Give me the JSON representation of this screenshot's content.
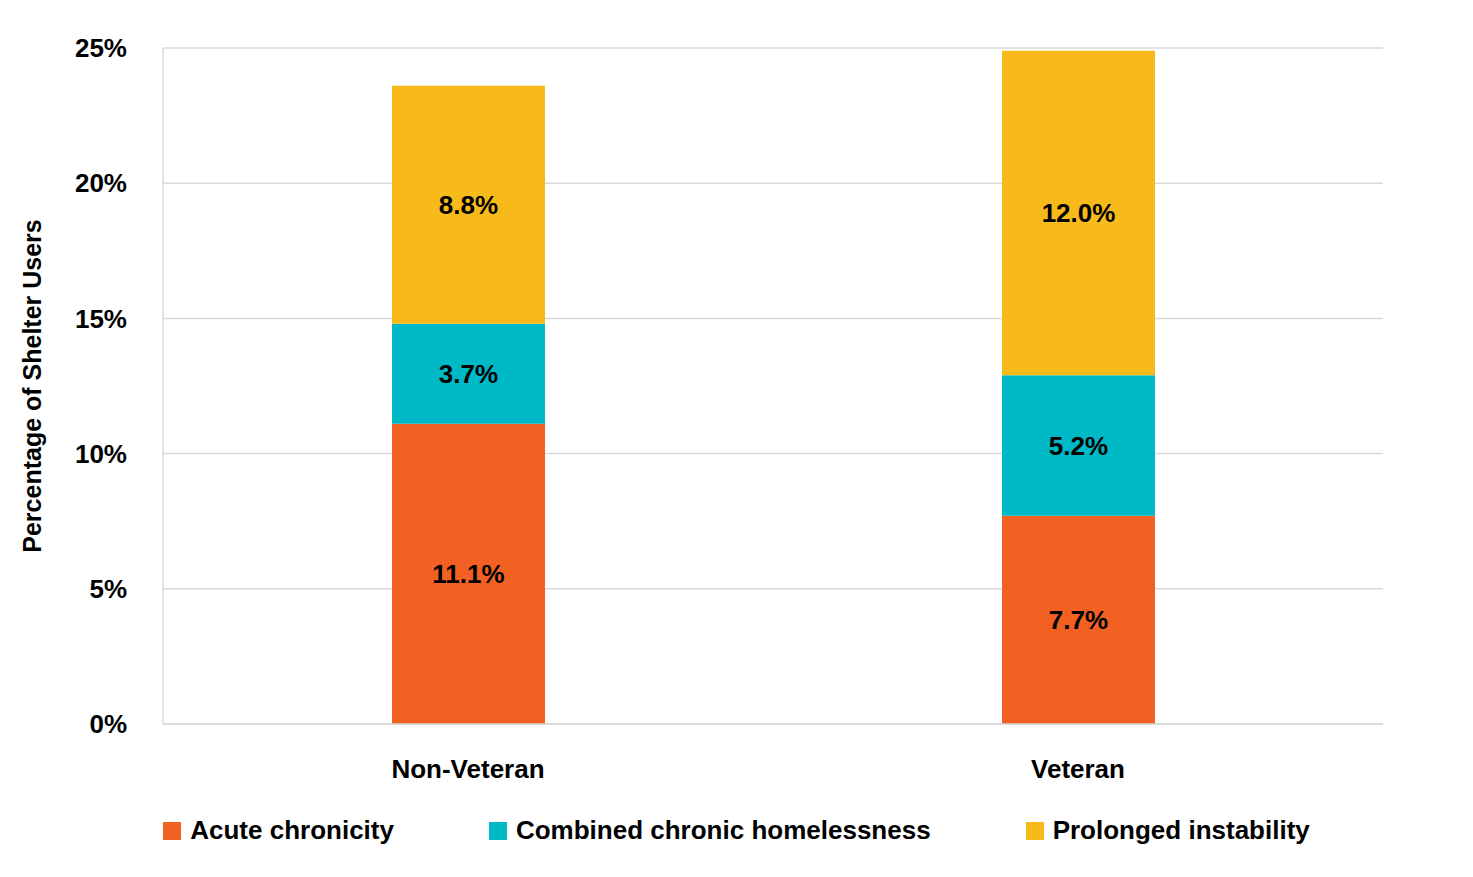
{
  "chart_data": {
    "type": "bar",
    "stacked": true,
    "categories": [
      "Non-Veteran",
      "Veteran"
    ],
    "y_label": "Percentage of Shelter Users",
    "ylim": [
      0,
      25
    ],
    "yticks": [
      {
        "value": 0,
        "label": "0%"
      },
      {
        "value": 5,
        "label": "5%"
      },
      {
        "value": 10,
        "label": "10%"
      },
      {
        "value": 15,
        "label": "15%"
      },
      {
        "value": 20,
        "label": "20%"
      },
      {
        "value": 25,
        "label": "25%"
      }
    ],
    "grid": true,
    "data_labels": true,
    "legend": "bottom",
    "series": [
      {
        "name": "Acute chronicity",
        "color": "#F26122",
        "values": [
          11.1,
          7.7
        ],
        "value_labels": [
          "11.1%",
          "7.7%"
        ]
      },
      {
        "name": "Combined chronic homelessness",
        "color": "#00B9C6",
        "values": [
          3.7,
          5.2
        ],
        "value_labels": [
          "3.7%",
          "5.2%"
        ]
      },
      {
        "name": "Prolonged instability",
        "color": "#F8BA1B",
        "values": [
          8.8,
          12.0
        ],
        "value_labels": [
          "8.8%",
          "12.0%"
        ]
      }
    ]
  }
}
